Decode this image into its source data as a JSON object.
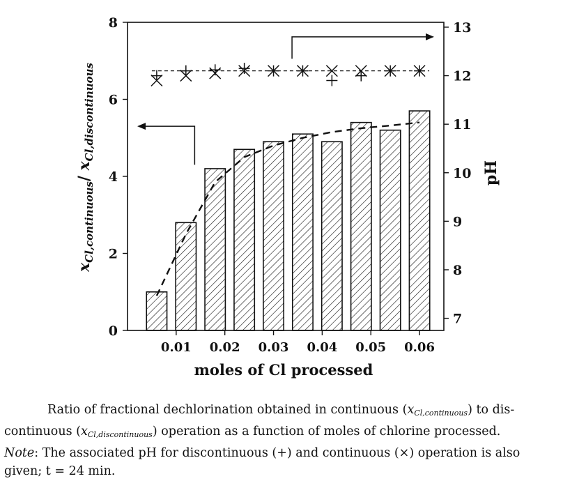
{
  "chart_data": {
    "type": "bar",
    "x_label": "moles of Cl processed",
    "y_left_label_main": "x",
    "y_left_label_sub1": "Cl,continuous",
    "y_left_label_sep": "/ ",
    "y_left_label_main2": "x",
    "y_left_label_sub2": "Cl,discontinuous",
    "y_right_label": "pH",
    "x_range": [
      0.0,
      0.065
    ],
    "y_left_range": [
      0,
      8
    ],
    "y_right_range": [
      6.75,
      13.1
    ],
    "x_ticks": [
      0.01,
      0.02,
      0.03,
      0.04,
      0.05,
      0.06
    ],
    "x_tick_labels": [
      "0.01",
      "0.02",
      "0.03",
      "0.04",
      "0.05",
      "0.06"
    ],
    "y_left_ticks": [
      0,
      2,
      4,
      6,
      8
    ],
    "y_left_tick_labels": [
      "0",
      "2",
      "4",
      "6",
      "8"
    ],
    "y_right_ticks": [
      7,
      8,
      9,
      10,
      11,
      12,
      13
    ],
    "y_right_tick_labels": [
      "7",
      "8",
      "9",
      "10",
      "11",
      "12",
      "13"
    ],
    "bars": {
      "x": [
        0.006,
        0.012,
        0.018,
        0.024,
        0.03,
        0.036,
        0.042,
        0.048,
        0.054,
        0.06
      ],
      "values": [
        1.0,
        2.8,
        4.2,
        4.7,
        4.9,
        5.1,
        4.9,
        5.4,
        5.2,
        5.7
      ],
      "width": 0.0042,
      "pattern": "hatched"
    },
    "trend_line": {
      "style": "dashed",
      "x": [
        0.006,
        0.012,
        0.018,
        0.024,
        0.03,
        0.036,
        0.042,
        0.048,
        0.054,
        0.06
      ],
      "y": [
        0.9,
        2.5,
        3.85,
        4.5,
        4.8,
        5.0,
        5.15,
        5.25,
        5.32,
        5.4
      ]
    },
    "ph_series": [
      {
        "name": "discontinuous",
        "marker": "+",
        "x": [
          0.006,
          0.012,
          0.018,
          0.024,
          0.03,
          0.036,
          0.042,
          0.048,
          0.054,
          0.06
        ],
        "y": [
          12.0,
          12.1,
          12.12,
          12.15,
          12.1,
          12.1,
          11.9,
          12.0,
          12.1,
          12.1
        ]
      },
      {
        "name": "continuous",
        "marker": "x",
        "x": [
          0.006,
          0.012,
          0.018,
          0.024,
          0.03,
          0.036,
          0.042,
          0.048,
          0.054,
          0.06
        ],
        "y": [
          11.9,
          12.0,
          12.05,
          12.1,
          12.1,
          12.1,
          12.1,
          12.1,
          12.1,
          12.1
        ]
      }
    ],
    "ph_reference_line": {
      "style": "dashed",
      "y": 12.1
    },
    "annotations": [
      {
        "type": "arrow",
        "points_to": "left axis",
        "from_x": 0.0138,
        "from_y_left": 4.3,
        "corner_y_left": 5.3
      },
      {
        "type": "arrow",
        "points_to": "right axis",
        "from_x": 0.0338,
        "from_y_right": 12.35,
        "corner_y_right": 12.8
      }
    ]
  },
  "caption": {
    "line1": "Ratio of fractional dechlorination obtained in continuous (",
    "var_x": "x",
    "sub_cont": "Cl,continuous",
    "line1b": ") to dis-",
    "line2a": "continuous (",
    "sub_disc": "Cl,discontinuous",
    "line2b": ") operation as a function of moles of chlorine processed.",
    "note_label": "Note",
    "line3": ": The associated pH for discontinuous (+) and continuous (×) operation is also",
    "line4": "given; t = 24 min."
  }
}
